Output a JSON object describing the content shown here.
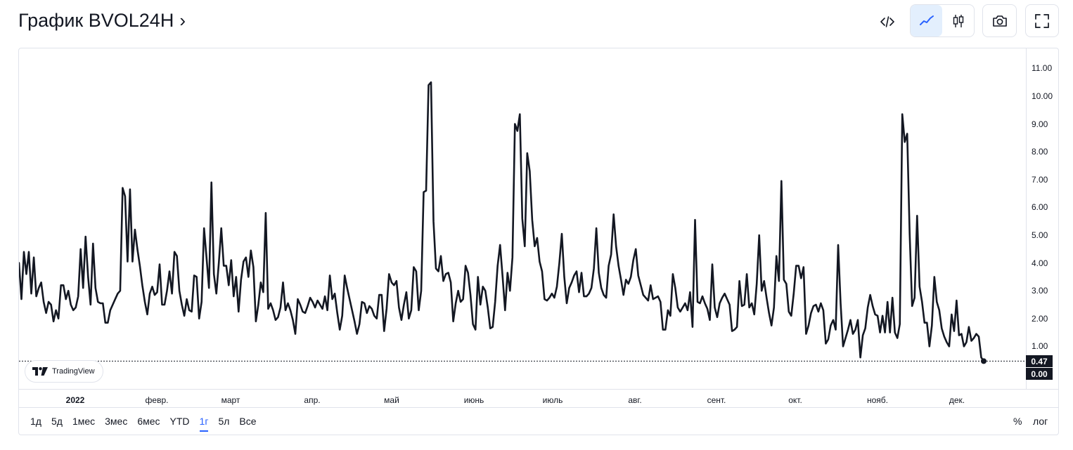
{
  "header": {
    "title": "График BVOL24H",
    "chevron": "›"
  },
  "toolbar": {
    "embed_icon": "code-embed-icon",
    "line_icon": "line-chart-icon",
    "candle_icon": "candlestick-icon",
    "camera_icon": "camera-icon",
    "fullscreen_icon": "fullscreen-icon"
  },
  "colors": {
    "line": "#131722",
    "accent": "#2962ff",
    "active_bg": "#e3effd",
    "border": "#e0e3eb"
  },
  "chart_data": {
    "type": "line",
    "series": [
      {
        "values": [
          4.0,
          2.7,
          4.4,
          3.6,
          4.4,
          2.9,
          4.2,
          2.8,
          3.1,
          3.3,
          2.6,
          2.2,
          2.6,
          2.5,
          1.9,
          2.3,
          2.0,
          3.2,
          3.2,
          2.7,
          3.0,
          2.5,
          2.3,
          2.4,
          2.8,
          4.5,
          3.1,
          4.95,
          3.5,
          2.5,
          4.7,
          3.1,
          2.6,
          2.55,
          2.55,
          1.85,
          1.85,
          2.3,
          2.5,
          2.7,
          2.9,
          3.0,
          6.7,
          6.4,
          4.05,
          6.65,
          4.05,
          5.2,
          4.5,
          3.9,
          3.2,
          2.6,
          2.15,
          2.9,
          3.15,
          2.85,
          2.95,
          3.95,
          2.5,
          2.5,
          3.0,
          3.7,
          2.9,
          4.4,
          4.25,
          3.0,
          2.5,
          2.1,
          2.7,
          2.3,
          2.25,
          3.55,
          3.5,
          2.0,
          2.6,
          5.25,
          4.2,
          3.1,
          6.9,
          3.6,
          2.9,
          4.0,
          5.25,
          3.9,
          3.9,
          3.2,
          4.1,
          2.8,
          3.5,
          2.25,
          3.4,
          4.05,
          4.2,
          3.5,
          4.45,
          3.85,
          1.9,
          2.5,
          3.3,
          2.95,
          5.8,
          2.35,
          2.55,
          2.3,
          1.95,
          2.05,
          2.4,
          3.3,
          2.3,
          2.55,
          2.3,
          1.95,
          1.45,
          2.7,
          2.5,
          2.25,
          2.2,
          2.45,
          2.75,
          2.6,
          2.4,
          2.65,
          2.5,
          2.35,
          2.8,
          2.3,
          3.55,
          2.7,
          2.9,
          2.2,
          1.6,
          2.1,
          3.55,
          3.1,
          2.7,
          2.3,
          1.9,
          1.45,
          1.8,
          2.6,
          2.55,
          2.2,
          2.45,
          2.35,
          2.1,
          2.0,
          2.85,
          2.85,
          1.55,
          2.35,
          3.6,
          3.3,
          3.2,
          3.35,
          2.4,
          1.95,
          2.5,
          2.95,
          2.0,
          2.3,
          3.85,
          3.7,
          2.3,
          3.0,
          6.55,
          6.6,
          10.4,
          10.5,
          5.5,
          3.8,
          3.7,
          4.25,
          3.35,
          3.6,
          3.65,
          3.3,
          1.9,
          2.55,
          3.0,
          2.6,
          2.7,
          3.9,
          3.65,
          2.85,
          1.8,
          1.6,
          3.5,
          2.5,
          3.15,
          3.0,
          2.4,
          1.65,
          1.7,
          2.6,
          3.9,
          4.65,
          3.5,
          2.3,
          3.65,
          3.0,
          4.2,
          9.0,
          8.75,
          9.35,
          5.6,
          4.6,
          7.95,
          7.3,
          5.55,
          4.6,
          4.9,
          4.05,
          3.7,
          2.7,
          2.65,
          2.75,
          2.9,
          2.75,
          3.15,
          4.0,
          5.05,
          3.5,
          2.55,
          3.1,
          3.3,
          3.55,
          3.7,
          2.95,
          3.65,
          2.8,
          2.8,
          2.9,
          3.1,
          3.8,
          5.25,
          3.65,
          3.1,
          2.85,
          2.75,
          3.9,
          4.3,
          5.75,
          4.6,
          3.9,
          3.4,
          2.85,
          3.4,
          3.25,
          3.5,
          4.1,
          4.5,
          3.55,
          3.2,
          2.85,
          2.75,
          2.65,
          3.2,
          2.7,
          2.75,
          2.8,
          2.6,
          1.6,
          1.6,
          2.3,
          2.1,
          3.6,
          3.1,
          2.4,
          2.25,
          2.4,
          2.55,
          2.3,
          2.95,
          1.7,
          5.55,
          2.6,
          2.55,
          2.8,
          2.55,
          2.35,
          1.95,
          3.95,
          2.4,
          2.05,
          2.55,
          2.75,
          2.9,
          2.7,
          2.5,
          1.55,
          1.6,
          1.7,
          3.35,
          2.45,
          2.5,
          3.6,
          2.4,
          2.55,
          2.15,
          3.25,
          5.0,
          3.0,
          3.35,
          2.75,
          2.2,
          1.75,
          2.4,
          4.25,
          3.35,
          6.95,
          3.4,
          3.25,
          2.25,
          2.1,
          2.9,
          3.9,
          3.9,
          3.45,
          3.85,
          1.45,
          1.75,
          2.2,
          2.45,
          2.5,
          2.25,
          2.55,
          2.3,
          1.1,
          1.25,
          1.75,
          1.95,
          1.6,
          4.65,
          2.55,
          1.0,
          1.3,
          1.6,
          1.95,
          1.45,
          1.6,
          1.95,
          0.6,
          1.4,
          1.65,
          2.4,
          2.85,
          2.45,
          2.15,
          2.1,
          1.5,
          2.1,
          1.5,
          2.6,
          1.5,
          2.75,
          1.5,
          1.3,
          1.8,
          9.35,
          8.35,
          8.65,
          5.05,
          2.45,
          2.75,
          5.7,
          3.15,
          2.6,
          1.85,
          1.85,
          1.0,
          1.75,
          3.5,
          2.6,
          2.3,
          1.65,
          1.35,
          1.15,
          1.0,
          2.15,
          1.55,
          2.65,
          1.4,
          1.45,
          1.0,
          1.15,
          1.7,
          1.2,
          1.3,
          1.45,
          1.35,
          0.6,
          0.47
        ]
      }
    ],
    "x_labels": [
      "2022",
      "февр.",
      "март",
      "апр.",
      "май",
      "июнь",
      "июль",
      "авг.",
      "сент.",
      "окт.",
      "нояб.",
      "дек."
    ],
    "y_ticks": [
      "11.00",
      "10.00",
      "9.00",
      "8.00",
      "7.00",
      "6.00",
      "5.00",
      "4.00",
      "3.00",
      "2.00",
      "1.00",
      "0.00"
    ],
    "ylim": [
      0,
      11.5
    ],
    "last_value": "0.47",
    "zero_label": "0.00",
    "grid": false
  },
  "watermark": {
    "label": "TradingView"
  },
  "ranges": [
    {
      "label": "1д",
      "active": false
    },
    {
      "label": "5д",
      "active": false
    },
    {
      "label": "1мес",
      "active": false
    },
    {
      "label": "3мес",
      "active": false
    },
    {
      "label": "6мес",
      "active": false
    },
    {
      "label": "YTD",
      "active": false
    },
    {
      "label": "1г",
      "active": true
    },
    {
      "label": "5л",
      "active": false
    },
    {
      "label": "Все",
      "active": false
    }
  ],
  "options": {
    "percent": "%",
    "log": "лог"
  }
}
